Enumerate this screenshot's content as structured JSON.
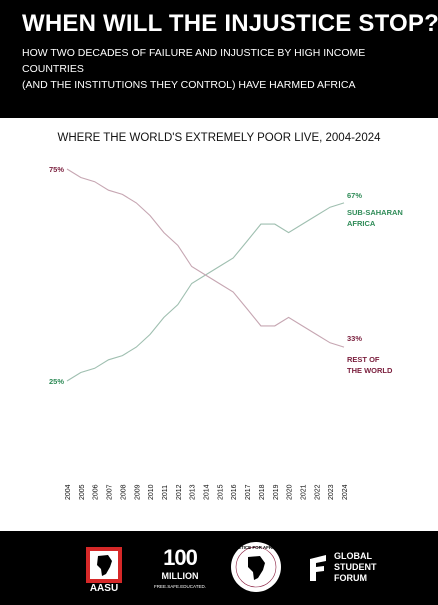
{
  "header": {
    "headline": "WHEN WILL THE INJUSTICE STOP?",
    "subhead_line1": "HOW TWO DECADES OF FAILURE AND INJUSTICE BY HIGH INCOME COUNTRIES",
    "subhead_line2": "(AND THE INSTITUTIONS THEY CONTROL) HAVE HARMED AFRICA"
  },
  "colors": {
    "header_bg": "#000000",
    "africa": "#2e8b57",
    "rest": "#8b2142",
    "rest_label": "#7a1f3d"
  },
  "chart_data": {
    "type": "line",
    "title": "WHERE THE WORLD'S EXTREMELY POOR LIVE, 2004-2024",
    "x": [
      2004,
      2005,
      2006,
      2007,
      2008,
      2009,
      2010,
      2011,
      2012,
      2013,
      2014,
      2015,
      2016,
      2017,
      2018,
      2019,
      2020,
      2021,
      2022,
      2023,
      2024
    ],
    "series": [
      {
        "name": "SUB-SAHARAN AFRICA",
        "values": [
          25,
          27,
          28,
          30,
          31,
          33,
          36,
          40,
          43,
          48,
          50,
          52,
          54,
          58,
          62,
          62,
          60,
          62,
          64,
          66,
          67
        ],
        "start_label": "25%",
        "end_label": "67%",
        "label_line1": "SUB-SAHARAN",
        "label_line2": "AFRICA"
      },
      {
        "name": "REST OF THE WORLD",
        "values": [
          75,
          73,
          72,
          70,
          69,
          67,
          64,
          60,
          57,
          52,
          50,
          48,
          46,
          42,
          38,
          38,
          40,
          38,
          36,
          34,
          33
        ],
        "start_label": "75%",
        "end_label": "33%",
        "label_line1": "REST OF",
        "label_line2": "THE WORLD"
      }
    ],
    "ylim": [
      20,
      80
    ],
    "grid": false,
    "legend": "inline labels at right"
  },
  "footer": {
    "logos": [
      {
        "name": "AASU",
        "text": "AASU"
      },
      {
        "name": "100 MILLION",
        "top": "100",
        "text": "MILLION",
        "sub": "FREE.SAFE.EDUCATED."
      },
      {
        "name": "JUSTICE FOR AFRICA",
        "text": "JUSTICE FOR AFRICA"
      },
      {
        "name": "GLOBAL STUDENT FORUM",
        "line1": "GLOBAL",
        "line2": "STUDENT",
        "line3": "FORUM"
      }
    ]
  }
}
